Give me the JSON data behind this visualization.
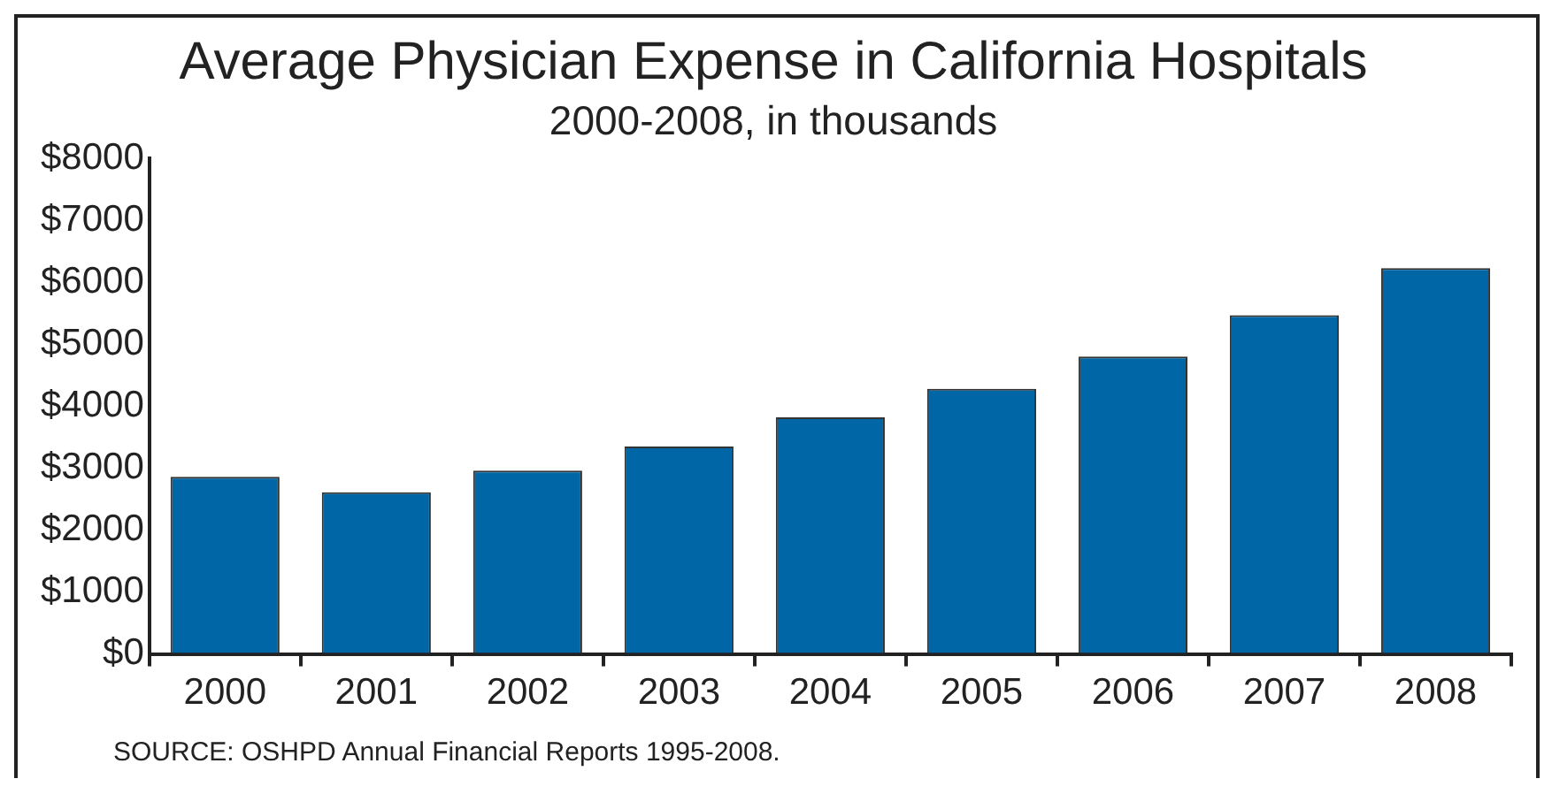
{
  "chart_data": {
    "type": "bar",
    "title": "Average Physician Expense in California Hospitals",
    "subtitle": "2000-2008, in thousands",
    "categories": [
      "2000",
      "2001",
      "2002",
      "2003",
      "2004",
      "2005",
      "2006",
      "2007",
      "2008"
    ],
    "values": [
      2860,
      2610,
      2960,
      3350,
      3820,
      4280,
      4800,
      5470,
      6230
    ],
    "color": "#0066a6",
    "ylim": [
      0,
      8000
    ],
    "yticks": [
      {
        "value": 0,
        "label": "$0"
      },
      {
        "value": 1000,
        "label": "$1000"
      },
      {
        "value": 2000,
        "label": "$2000"
      },
      {
        "value": 3000,
        "label": "$3000"
      },
      {
        "value": 4000,
        "label": "$4000"
      },
      {
        "value": 5000,
        "label": "$5000"
      },
      {
        "value": 6000,
        "label": "$6000"
      },
      {
        "value": 7000,
        "label": "$7000"
      },
      {
        "value": 8000,
        "label": "$8000"
      }
    ],
    "grid": false,
    "legend": false,
    "annotations": [
      "SOURCE: OSHPD Annual Financial Reports 1995-2008."
    ]
  }
}
